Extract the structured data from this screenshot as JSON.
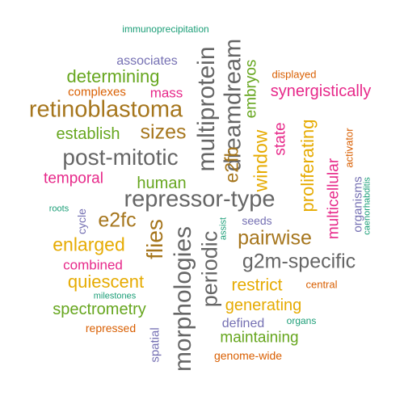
{
  "words": [
    {
      "text": "immunoprecipitation",
      "color": "#1b9e77",
      "rotated": false
    },
    {
      "text": "associates",
      "color": "#7570b3",
      "rotated": false
    },
    {
      "text": "displayed",
      "color": "#d95f02",
      "rotated": false
    },
    {
      "text": "determining",
      "color": "#66a61e",
      "rotated": false
    },
    {
      "text": "complexes",
      "color": "#d95f02",
      "rotated": false
    },
    {
      "text": "mass",
      "color": "#e7298a",
      "rotated": false
    },
    {
      "text": "synergistically",
      "color": "#e7298a",
      "rotated": false
    },
    {
      "text": "retinoblastoma",
      "color": "#a6761d",
      "rotated": false
    },
    {
      "text": "establish",
      "color": "#66a61e",
      "rotated": false
    },
    {
      "text": "sizes",
      "color": "#a6761d",
      "rotated": false
    },
    {
      "text": "post-mitotic",
      "color": "#666666",
      "rotated": false
    },
    {
      "text": "temporal",
      "color": "#e7298a",
      "rotated": false
    },
    {
      "text": "human",
      "color": "#66a61e",
      "rotated": false
    },
    {
      "text": "repressor-type",
      "color": "#666666",
      "rotated": false
    },
    {
      "text": "roots",
      "color": "#1b9e77",
      "rotated": false
    },
    {
      "text": "e2fc",
      "color": "#a6761d",
      "rotated": false
    },
    {
      "text": "seeds",
      "color": "#7570b3",
      "rotated": false
    },
    {
      "text": "pairwise",
      "color": "#a6761d",
      "rotated": false
    },
    {
      "text": "enlarged",
      "color": "#e6ab02",
      "rotated": false
    },
    {
      "text": "g2m-specific",
      "color": "#666666",
      "rotated": false
    },
    {
      "text": "combined",
      "color": "#e7298a",
      "rotated": false
    },
    {
      "text": "quiescent",
      "color": "#e6ab02",
      "rotated": false
    },
    {
      "text": "restrict",
      "color": "#e6ab02",
      "rotated": false
    },
    {
      "text": "central",
      "color": "#d95f02",
      "rotated": false
    },
    {
      "text": "milestones",
      "color": "#1b9e77",
      "rotated": false
    },
    {
      "text": "spectrometry",
      "color": "#66a61e",
      "rotated": false
    },
    {
      "text": "generating",
      "color": "#e6ab02",
      "rotated": false
    },
    {
      "text": "repressed",
      "color": "#d95f02",
      "rotated": false
    },
    {
      "text": "defined",
      "color": "#7570b3",
      "rotated": false
    },
    {
      "text": "organs",
      "color": "#1b9e77",
      "rotated": false
    },
    {
      "text": "maintaining",
      "color": "#66a61e",
      "rotated": false
    },
    {
      "text": "genome-wide",
      "color": "#d95f02",
      "rotated": false
    },
    {
      "text": "morphologies",
      "color": "#666666",
      "rotated": true
    },
    {
      "text": "periodic",
      "color": "#666666",
      "rotated": true
    },
    {
      "text": "multiprotein",
      "color": "#666666",
      "rotated": true
    },
    {
      "text": "dreamdream",
      "color": "#666666",
      "rotated": true
    },
    {
      "text": "e2fb",
      "color": "#a6761d",
      "rotated": true
    },
    {
      "text": "embryos",
      "color": "#66a61e",
      "rotated": true
    },
    {
      "text": "window",
      "color": "#e6ab02",
      "rotated": true
    },
    {
      "text": "state",
      "color": "#e7298a",
      "rotated": true
    },
    {
      "text": "proliferating",
      "color": "#e6ab02",
      "rotated": true
    },
    {
      "text": "multicellular",
      "color": "#e7298a",
      "rotated": true
    },
    {
      "text": "activator",
      "color": "#d95f02",
      "rotated": true
    },
    {
      "text": "organisms",
      "color": "#7570b3",
      "rotated": true
    },
    {
      "text": "caenorhabditis",
      "color": "#1b9e77",
      "rotated": true
    },
    {
      "text": "flies",
      "color": "#a6761d",
      "rotated": true
    },
    {
      "text": "cycle",
      "color": "#7570b3",
      "rotated": true
    },
    {
      "text": "assist",
      "color": "#1b9e77",
      "rotated": true
    },
    {
      "text": "spatial",
      "color": "#7570b3",
      "rotated": true
    }
  ]
}
